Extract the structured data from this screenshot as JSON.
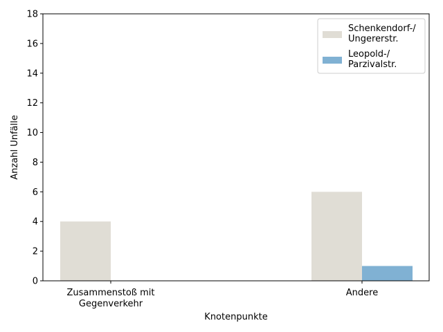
{
  "chart_data": {
    "type": "bar",
    "title": "",
    "xlabel": "Knotenpunkte",
    "ylabel": "Anzahl Unfälle",
    "categories": [
      [
        "Zusammenstoß mit",
        "Gegenverkehr"
      ],
      [
        "Andere"
      ]
    ],
    "series": [
      {
        "name": [
          "Schenkendorf-/",
          "Ungererstr."
        ],
        "values": [
          4,
          6
        ],
        "color": "#e0ddd5"
      },
      {
        "name": [
          "Leopold-/",
          "Parzivalstr."
        ],
        "values": [
          0,
          1
        ],
        "color": "#80b1d3"
      }
    ],
    "ylim": [
      0,
      18
    ],
    "yticks": [
      0,
      2,
      4,
      6,
      8,
      10,
      12,
      14,
      16,
      18
    ],
    "grid": false,
    "legend": "top-right"
  }
}
